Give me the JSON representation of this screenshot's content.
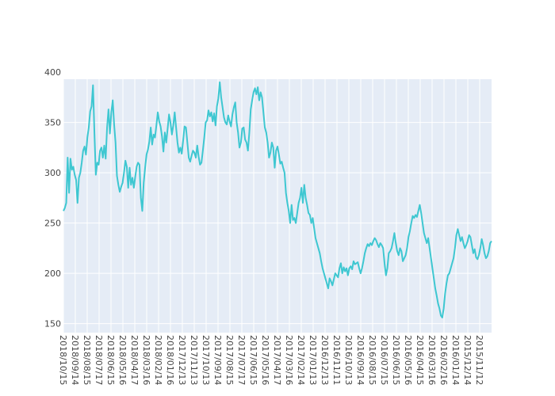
{
  "chart_data": {
    "type": "line",
    "title": "",
    "xlabel": "",
    "ylabel": "",
    "x_axis_order": "reversed",
    "ylim": [
      141,
      393
    ],
    "y_ticks": [
      150,
      200,
      250,
      300,
      350,
      400
    ],
    "x_tick_labels": [
      "2018/10/15",
      "2018/09/14",
      "2018/08/15",
      "2018/07/17",
      "2018/06/15",
      "2018/05/16",
      "2018/04/17",
      "2018/03/16",
      "2018/02/14",
      "2018/01/16",
      "2017/12/13",
      "2017/11/13",
      "2017/10/13",
      "2017/09/14",
      "2017/08/15",
      "2017/07/17",
      "2017/06/15",
      "2017/05/16",
      "2017/04/17",
      "2017/03/16",
      "2017/02/14",
      "2017/01/13",
      "2016/12/13",
      "2016/11/11",
      "2016/10/13",
      "2016/09/14",
      "2016/08/15",
      "2016/07/15",
      "2016/06/15",
      "2016/05/16",
      "2016/04/15",
      "2016/03/16",
      "2016/02/16",
      "2016/01/14",
      "2015/12/14",
      "2015/11/12"
    ],
    "series": [
      {
        "color": "#3ec7d1",
        "values": [
          262,
          265,
          270,
          315,
          280,
          314,
          303,
          306,
          298,
          293,
          270,
          295,
          300,
          310,
          322,
          326,
          318,
          335,
          345,
          361,
          366,
          387,
          340,
          298,
          310,
          308,
          322,
          325,
          315,
          327,
          314,
          345,
          363,
          339,
          360,
          372,
          348,
          330,
          297,
          288,
          281,
          286,
          290,
          300,
          312,
          306,
          285,
          305,
          288,
          295,
          285,
          296,
          306,
          310,
          308,
          275,
          262,
          290,
          305,
          318,
          323,
          331,
          345,
          328,
          338,
          335,
          347,
          360,
          351,
          346,
          336,
          321,
          340,
          330,
          344,
          358,
          350,
          338,
          347,
          360,
          345,
          330,
          320,
          325,
          319,
          332,
          346,
          345,
          330,
          315,
          311,
          317,
          322,
          320,
          315,
          327,
          316,
          308,
          310,
          322,
          335,
          350,
          352,
          362,
          356,
          360,
          351,
          359,
          347,
          366,
          374,
          390,
          375,
          365,
          355,
          350,
          348,
          357,
          351,
          346,
          358,
          365,
          370,
          350,
          340,
          325,
          330,
          344,
          345,
          333,
          330,
          322,
          340,
          363,
          372,
          380,
          384,
          378,
          385,
          372,
          380,
          375,
          360,
          345,
          340,
          330,
          315,
          320,
          330,
          325,
          305,
          322,
          326,
          318,
          309,
          311,
          305,
          300,
          280,
          270,
          262,
          250,
          268,
          253,
          255,
          250,
          260,
          270,
          275,
          285,
          270,
          288,
          275,
          268,
          260,
          258,
          250,
          255,
          245,
          235,
          230,
          225,
          220,
          212,
          205,
          200,
          195,
          190,
          185,
          195,
          192,
          188,
          194,
          200,
          198,
          196,
          205,
          210,
          200,
          206,
          202,
          205,
          198,
          205,
          207,
          204,
          212,
          209,
          210,
          211,
          205,
          200,
          205,
          212,
          220,
          225,
          229,
          227,
          230,
          228,
          232,
          235,
          233,
          229,
          226,
          230,
          228,
          225,
          210,
          198,
          205,
          220,
          222,
          225,
          232,
          240,
          230,
          222,
          218,
          225,
          222,
          212,
          215,
          218,
          225,
          236,
          242,
          250,
          257,
          255,
          258,
          256,
          262,
          268,
          260,
          250,
          240,
          235,
          230,
          235,
          225,
          215,
          205,
          195,
          185,
          178,
          170,
          165,
          158,
          156,
          165,
          180,
          190,
          198,
          200,
          205,
          210,
          215,
          225,
          238,
          244,
          238,
          232,
          236,
          230,
          225,
          228,
          232,
          238,
          236,
          228,
          220,
          224,
          216,
          214,
          218,
          225,
          234,
          228,
          220,
          215,
          217,
          222,
          230,
          232
        ]
      }
    ]
  }
}
